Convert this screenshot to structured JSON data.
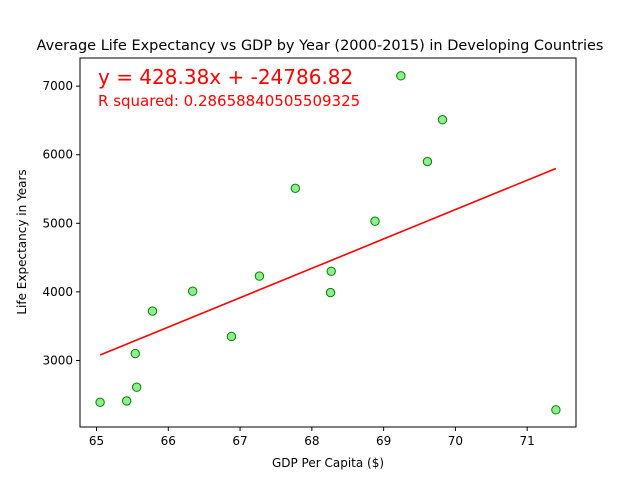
{
  "chart_data": {
    "type": "scatter",
    "title": "Average Life Expectancy vs GDP by Year (2000-2015) in Developing Countries",
    "xlabel": "GDP Per Capita ($)",
    "ylabel": "Life Expectancy in Years",
    "xlim": [
      64.77,
      71.68
    ],
    "ylim": [
      2030,
      7410
    ],
    "xticks": [
      65,
      66,
      67,
      68,
      69,
      70,
      71
    ],
    "yticks": [
      3000,
      4000,
      5000,
      6000,
      7000
    ],
    "grid": false,
    "points": [
      {
        "x": 65.05,
        "y": 2390
      },
      {
        "x": 65.42,
        "y": 2410
      },
      {
        "x": 65.54,
        "y": 3100
      },
      {
        "x": 65.56,
        "y": 2610
      },
      {
        "x": 65.78,
        "y": 3720
      },
      {
        "x": 66.34,
        "y": 4010
      },
      {
        "x": 66.88,
        "y": 3350
      },
      {
        "x": 67.27,
        "y": 4230
      },
      {
        "x": 67.77,
        "y": 5510
      },
      {
        "x": 68.26,
        "y": 3990
      },
      {
        "x": 68.27,
        "y": 4300
      },
      {
        "x": 68.88,
        "y": 5030
      },
      {
        "x": 69.24,
        "y": 7150
      },
      {
        "x": 69.61,
        "y": 5900
      },
      {
        "x": 69.82,
        "y": 6510
      },
      {
        "x": 71.4,
        "y": 2280
      }
    ],
    "regression": {
      "slope": 428.38,
      "intercept": -24786.82,
      "x_range": [
        65.05,
        71.4
      ],
      "equation_text": "y = 428.38x + -24786.82",
      "r_squared_text": "R squared: 0.28658840505509325"
    },
    "colors": {
      "point_fill": "#90ee90",
      "point_edge": "#008000",
      "line": "#ff0000",
      "annotation": "#ff0000"
    }
  }
}
